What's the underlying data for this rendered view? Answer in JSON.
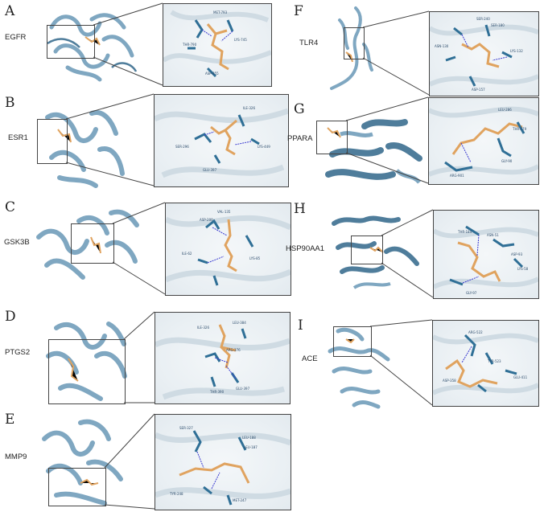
{
  "panels": [
    {
      "letter": "A",
      "protein": "EGFR",
      "residues": [
        "MET-793",
        "THR-790",
        "LYS-745",
        "ASP-855"
      ]
    },
    {
      "letter": "B",
      "protein": "ESR1",
      "residues": [
        "ILE-326",
        "SER-296",
        "GLU-397",
        "LYS-449"
      ]
    },
    {
      "letter": "C",
      "protein": "GSK3B",
      "residues": [
        "VAL-135",
        "ASP-200",
        "LYS-85",
        "ILE-62"
      ]
    },
    {
      "letter": "D",
      "protein": "PTGS2",
      "residues": [
        "ILE-326",
        "LEU-384",
        "ARG-376",
        "THR-390",
        "GLU-397"
      ]
    },
    {
      "letter": "E",
      "protein": "MMP9",
      "residues": [
        "TYR-248",
        "SER-327",
        "LEU-188",
        "LEU-187",
        "MET-247"
      ]
    },
    {
      "letter": "F",
      "protein": "TLR4",
      "residues": [
        "SER-240",
        "SER-180",
        "ASN-130",
        "LYS-132",
        "ASP-157"
      ]
    },
    {
      "letter": "G",
      "protein": "PPARA",
      "residues": [
        "LEU-286",
        "THR-279",
        "ARG-901",
        "GLY-90"
      ]
    },
    {
      "letter": "H",
      "protein": "HSP90AA1",
      "residues": [
        "THR-184",
        "ASN-51",
        "ASP-93",
        "LYS-58",
        "GLY-97"
      ]
    },
    {
      "letter": "I",
      "protein": "ACE",
      "residues": [
        "ARG-522",
        "TYR-523",
        "ASP-358",
        "GLU-411"
      ]
    }
  ],
  "colors": {
    "ribbon": "#7fa7c1",
    "ribbon_dark": "#4f7d9b",
    "ligand": "#e0a35f",
    "residue": "#2f6f96",
    "hbond": "#3a3ad0",
    "frame": "#444444"
  }
}
